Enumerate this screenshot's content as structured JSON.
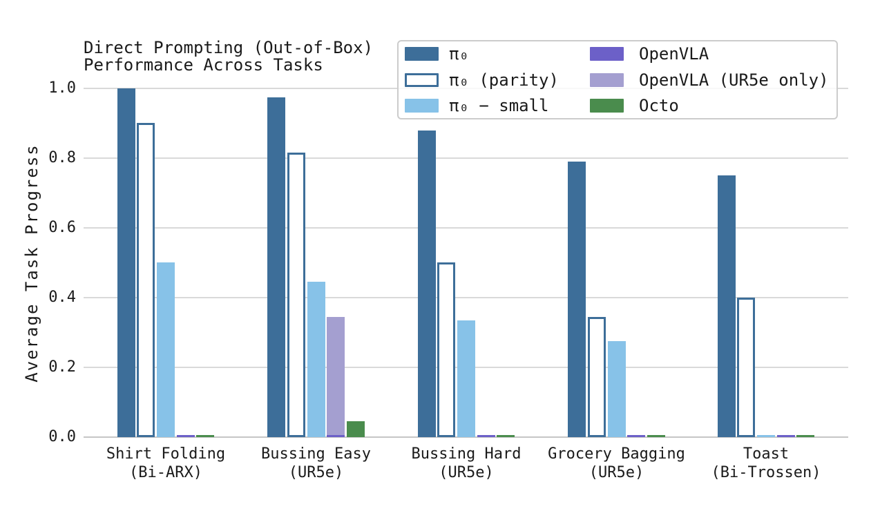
{
  "chart_data": {
    "type": "bar",
    "title_line1": "Direct Prompting (Out-of-Box)",
    "title_line2": "Performance Across Tasks",
    "ylabel": "Average Task Progress",
    "ylim": [
      0.0,
      1.0
    ],
    "yticks": [
      "0.0",
      "0.2",
      "0.4",
      "0.6",
      "0.8",
      "1.0"
    ],
    "grid": "horizontal",
    "legend_position": "top-right inside figure, 2 columns, semi-transparent box",
    "categories": [
      {
        "line1": "Shirt Folding",
        "line2": "(Bi-ARX)"
      },
      {
        "line1": "Bussing Easy",
        "line2": "(UR5e)"
      },
      {
        "line1": "Bussing Hard",
        "line2": "(UR5e)"
      },
      {
        "line1": "Grocery Bagging",
        "line2": "(UR5e)"
      },
      {
        "line1": "Toast",
        "line2": "(Bi-Trossen)"
      }
    ],
    "series": [
      {
        "name": "π₀",
        "style": "filled",
        "color": "#3d6e99",
        "slot": 0,
        "layer": 1,
        "values": [
          1.0,
          0.975,
          0.88,
          0.79,
          0.75
        ]
      },
      {
        "name": "π₀ (parity)",
        "style": "outline",
        "color": "#ffffff",
        "edge_color": "#3d6e99",
        "slot": 1,
        "layer": 1,
        "values": [
          0.9,
          0.815,
          0.5,
          0.345,
          0.4
        ]
      },
      {
        "name": "π₀ − small",
        "style": "filled",
        "color": "#87c2e8",
        "slot": 2,
        "layer": 1,
        "values": [
          0.5,
          0.445,
          0.335,
          0.275,
          0.005
        ]
      },
      {
        "name": "OpenVLA",
        "style": "filled",
        "color": "#6c60c8",
        "slot": 3,
        "layer": 2,
        "values": [
          0.005,
          0.005,
          0.005,
          0.005,
          0.005
        ]
      },
      {
        "name": "OpenVLA (UR5e only)",
        "style": "filled",
        "color": "#a49fd0",
        "slot": 3,
        "layer": 1,
        "values": [
          null,
          0.345,
          0.005,
          0.005,
          null
        ]
      },
      {
        "name": "Octo",
        "style": "filled",
        "color": "#4a8c4d",
        "slot": 4,
        "layer": 1,
        "values": [
          0.005,
          0.045,
          0.005,
          0.005,
          0.005
        ]
      }
    ],
    "legend_columns": [
      [
        0,
        1,
        2
      ],
      [
        3,
        4,
        5
      ]
    ],
    "note": "OpenVLA and OpenVLA (UR5e only) share the 4th bar slot in each group"
  },
  "colors": {
    "background": "#ffffff",
    "grid": "#d9d9d9",
    "axis_line": "#c6c6c6",
    "text": "#1a1a1a",
    "legend_border": "#cccccc"
  }
}
